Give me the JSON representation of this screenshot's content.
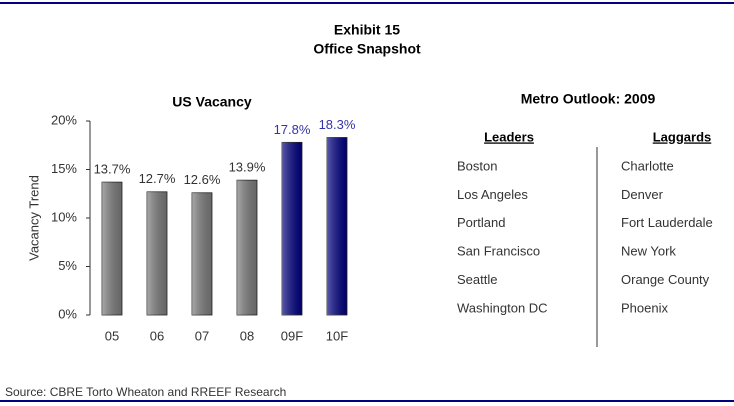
{
  "header": {
    "title": "Exhibit 15",
    "subtitle": "Office Snapshot"
  },
  "chart_data": {
    "type": "bar",
    "title": "US Vacancy",
    "y_label": "Vacancy Trend",
    "categories": [
      "05",
      "06",
      "07",
      "08",
      "09F",
      "10F"
    ],
    "values": [
      13.7,
      12.7,
      12.6,
      13.9,
      17.8,
      18.3
    ],
    "value_labels": [
      "13.7%",
      "12.7%",
      "12.6%",
      "13.9%",
      "17.8%",
      "18.3%"
    ],
    "colors": [
      "#7a7a7a",
      "#7a7a7a",
      "#7a7a7a",
      "#7a7a7a",
      "#000080",
      "#000080"
    ],
    "label_colors": [
      "#333333",
      "#333333",
      "#333333",
      "#333333",
      "#3333aa",
      "#3333aa"
    ],
    "ylim": [
      0,
      20
    ],
    "yticks": [
      {
        "value": 0,
        "label": "0%"
      },
      {
        "value": 5,
        "label": "5%"
      },
      {
        "value": 10,
        "label": "10%"
      },
      {
        "value": 15,
        "label": "15%"
      },
      {
        "value": 20,
        "label": "20%"
      }
    ]
  },
  "metro_outlook": {
    "title": "Metro Outlook: 2009",
    "leaders": {
      "heading": "Leaders",
      "items": [
        "Boston",
        "Los Angeles",
        "Portland",
        "San Francisco",
        "Seattle",
        "Washington DC"
      ]
    },
    "laggards": {
      "heading": "Laggards",
      "items": [
        "Charlotte",
        "Denver",
        "Fort Lauderdale",
        "New York",
        "Orange County",
        "Phoenix"
      ]
    }
  },
  "source": "Source: CBRE Torto Wheaton and RREEF Research"
}
